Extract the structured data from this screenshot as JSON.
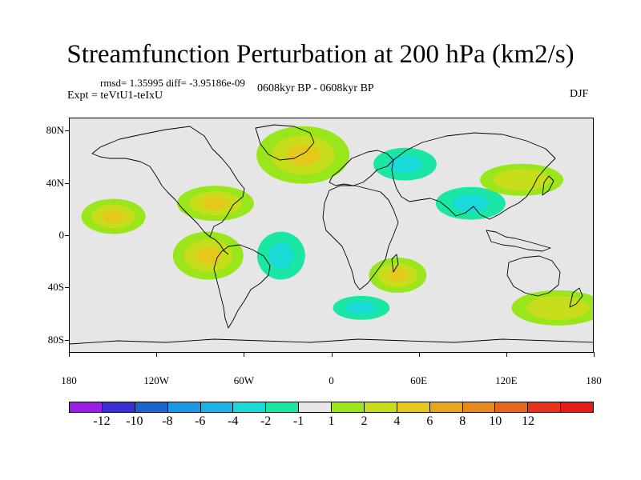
{
  "title": "Streamfunction Perturbation at 200 hPa (km2/s)",
  "stats": "rmsd= 1.35995 diff= -3.95186e-09",
  "experiment": "Expt = teVtU1-teIxU",
  "period": "0608kyr BP - 0608kyr BP",
  "season": "DJF",
  "axes": {
    "y_ticks": [
      {
        "label": "80N",
        "lat": 80
      },
      {
        "label": "40N",
        "lat": 40
      },
      {
        "label": "0",
        "lat": 0
      },
      {
        "label": "40S",
        "lat": -40
      },
      {
        "label": "80S",
        "lat": -80
      }
    ],
    "x_ticks": [
      {
        "label": "180",
        "lon": -180
      },
      {
        "label": "120W",
        "lon": -120
      },
      {
        "label": "60W",
        "lon": -60
      },
      {
        "label": "0",
        "lon": 0
      },
      {
        "label": "60E",
        "lon": 60
      },
      {
        "label": "120E",
        "lon": 120
      },
      {
        "label": "180",
        "lon": 180
      }
    ]
  },
  "colorbar": {
    "colors": [
      "#9a1fe6",
      "#3a2fd6",
      "#1a66cc",
      "#1a99e6",
      "#1ab3e6",
      "#1ad9d9",
      "#1ae6a6",
      "#e6e6e6",
      "#99e61a",
      "#c8dd1a",
      "#e6c81a",
      "#e6a81a",
      "#e68a1a",
      "#e6661a",
      "#e6331a",
      "#e61a1a"
    ],
    "labels": [
      "-12",
      "-10",
      "-8",
      "-6",
      "-4",
      "-2",
      "-1",
      "1",
      "2",
      "4",
      "6",
      "8",
      "10",
      "12"
    ]
  },
  "chart_data": {
    "type": "heatmap",
    "title": "Streamfunction Perturbation at 200 hPa (km2/s)",
    "lon_range": [
      -180,
      180
    ],
    "lat_range": [
      -90,
      90
    ],
    "levels": [
      -12,
      -10,
      -8,
      -6,
      -4,
      -2,
      -1,
      1,
      2,
      4,
      6,
      8,
      10,
      12
    ],
    "features": [
      {
        "name": "north-atlantic-high",
        "lon": -20,
        "lat": 62,
        "value": 4
      },
      {
        "name": "eurasia-low",
        "lon": 50,
        "lat": 55,
        "value": -4
      },
      {
        "name": "asia-low",
        "lon": 95,
        "lat": 25,
        "value": -4
      },
      {
        "name": "npacific-high-east",
        "lon": -150,
        "lat": 15,
        "value": 4
      },
      {
        "name": "north-america-high",
        "lon": -80,
        "lat": 25,
        "value": 4
      },
      {
        "name": "east-asia-high",
        "lon": 130,
        "lat": 43,
        "value": 2
      },
      {
        "name": "s-america-high",
        "lon": -85,
        "lat": -15,
        "value": 4
      },
      {
        "name": "s-atlantic-low",
        "lon": -35,
        "lat": -15,
        "value": -4
      },
      {
        "name": "indian-ocean-high",
        "lon": 45,
        "lat": -30,
        "value": 4
      },
      {
        "name": "southern-ocean-low",
        "lon": 20,
        "lat": -55,
        "value": -4
      },
      {
        "name": "s-pacific-high",
        "lon": 155,
        "lat": -55,
        "value": 2
      }
    ]
  }
}
